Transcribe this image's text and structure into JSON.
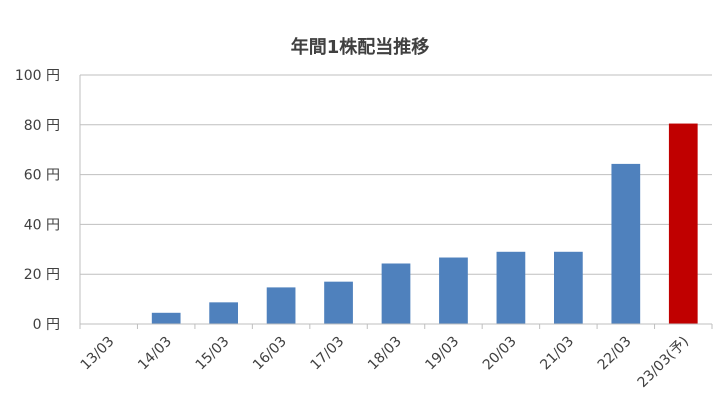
{
  "chart_data": {
    "type": "bar",
    "title": "年間1株配当推移",
    "xlabel": "",
    "ylabel": "",
    "categories": [
      "13/03",
      "14/03",
      "15/03",
      "16/03",
      "17/03",
      "18/03",
      "19/03",
      "20/03",
      "21/03",
      "22/03",
      "23/03(予)"
    ],
    "values": [
      0,
      4.5,
      8.7,
      14.7,
      17.0,
      24.3,
      26.7,
      29.0,
      29.0,
      64.3,
      80.5
    ],
    "y_ticks": [
      {
        "value": 0,
        "label": "0 円"
      },
      {
        "value": 20,
        "label": "20 円"
      },
      {
        "value": 40,
        "label": "40 円"
      },
      {
        "value": 60,
        "label": "60 円"
      },
      {
        "value": 80,
        "label": "80 円"
      },
      {
        "value": 100,
        "label": "100 円"
      }
    ],
    "ylim": [
      0,
      100
    ],
    "grid": true,
    "legend": "none",
    "colors": {
      "actual": "#4f81bd",
      "forecast": "#c00000",
      "grid": "#bfbfbf",
      "axis": "#bfbfbf",
      "text": "#404040"
    },
    "forecast_index": 10
  }
}
